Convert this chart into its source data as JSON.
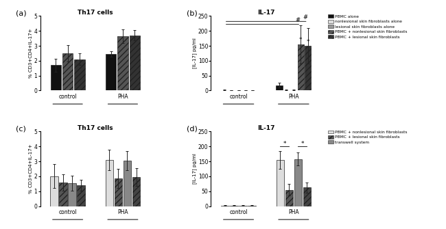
{
  "panel_a": {
    "title": "Th17 cells",
    "ylabel": "% CD3+CD4+IL-17+",
    "ylim": [
      0,
      5
    ],
    "yticks": [
      0,
      1,
      2,
      3,
      4,
      5
    ],
    "groups": [
      "control",
      "PHA"
    ],
    "bars": [
      {
        "label": "PBMC alone",
        "values": [
          1.7,
          2.45
        ],
        "errors": [
          0.45,
          0.2
        ],
        "color": "#111111",
        "hatch": null
      },
      {
        "label": "PBMC + nonlesional",
        "values": [
          2.5,
          3.65
        ],
        "errors": [
          0.55,
          0.45
        ],
        "color": "#555555",
        "hatch": "////"
      },
      {
        "label": "PBMC + lesional",
        "values": [
          2.1,
          3.7
        ],
        "errors": [
          0.4,
          0.35
        ],
        "color": "#333333",
        "hatch": "////"
      }
    ]
  },
  "panel_b": {
    "title": "IL-17",
    "ylabel": "[IL-17] pg/ml",
    "ylim": [
      0,
      250
    ],
    "yticks": [
      0,
      50,
      100,
      150,
      200,
      250
    ],
    "groups": [
      "control",
      "PHA"
    ],
    "bars": [
      {
        "label": "PBMC alone",
        "values": [
          2,
          18
        ],
        "errors": [
          1,
          8
        ],
        "color": "#111111",
        "hatch": null
      },
      {
        "label": "nonlesional skin fibroblasts alone",
        "values": [
          1,
          2
        ],
        "errors": [
          0.5,
          1
        ],
        "color": "#dddddd",
        "hatch": null
      },
      {
        "label": "lesional skin fibroblasts alone",
        "values": [
          1,
          2
        ],
        "errors": [
          0.5,
          1
        ],
        "color": "#999999",
        "hatch": null
      },
      {
        "label": "PBMC + nonlesional skin fibroblasts",
        "values": [
          1,
          155
        ],
        "errors": [
          0.5,
          65
        ],
        "color": "#555555",
        "hatch": "////"
      },
      {
        "label": "PBMC + lesional skin fibroblasts",
        "values": [
          1,
          150
        ],
        "errors": [
          0.5,
          60
        ],
        "color": "#333333",
        "hatch": "////"
      }
    ]
  },
  "panel_c": {
    "title": "Th17 cells",
    "ylabel": "% CD3+CD4+IL-17+",
    "ylim": [
      0,
      5
    ],
    "yticks": [
      0,
      1,
      2,
      3,
      4,
      5
    ],
    "groups": [
      "control",
      "PHA"
    ],
    "bars": [
      {
        "label": "PBMC + nonlesional skin fibroblasts",
        "values": [
          2.0,
          3.1
        ],
        "errors": [
          0.8,
          0.7
        ],
        "color": "#dddddd",
        "hatch": null
      },
      {
        "label": "PBMC + lesional skin fibroblasts",
        "values": [
          1.6,
          1.85
        ],
        "errors": [
          0.55,
          0.65
        ],
        "color": "#555555",
        "hatch": "////"
      },
      {
        "label": "transwell nonlesional",
        "values": [
          1.55,
          3.05
        ],
        "errors": [
          0.5,
          0.65
        ],
        "color": "#888888",
        "hatch": null
      },
      {
        "label": "transwell lesional",
        "values": [
          1.4,
          1.95
        ],
        "errors": [
          0.35,
          0.6
        ],
        "color": "#444444",
        "hatch": "////"
      }
    ]
  },
  "panel_d": {
    "title": "IL-17",
    "ylabel": "[IL-17] pg/ml",
    "ylim": [
      0,
      250
    ],
    "yticks": [
      0,
      50,
      100,
      150,
      200,
      250
    ],
    "groups": [
      "control",
      "PHA"
    ],
    "bars": [
      {
        "label": "PBMC + nonlesional skin fibroblasts",
        "values": [
          2,
          155
        ],
        "errors": [
          1,
          30
        ],
        "color": "#dddddd",
        "hatch": null
      },
      {
        "label": "PBMC + lesional skin fibroblasts",
        "values": [
          2,
          55
        ],
        "errors": [
          1,
          20
        ],
        "color": "#555555",
        "hatch": "////"
      },
      {
        "label": "transwell nonlesional",
        "values": [
          2,
          158
        ],
        "errors": [
          1,
          22
        ],
        "color": "#888888",
        "hatch": null
      },
      {
        "label": "transwell lesional",
        "values": [
          2,
          62
        ],
        "errors": [
          1,
          18
        ],
        "color": "#444444",
        "hatch": "////"
      }
    ]
  },
  "legend_b": [
    {
      "label": "PBMC alone",
      "color": "#111111",
      "hatch": null
    },
    {
      "label": "nonlesional skin fibroblasts alone",
      "color": "#dddddd",
      "hatch": null
    },
    {
      "label": "lesional skin fibroblasts alone",
      "color": "#999999",
      "hatch": null
    },
    {
      "label": "PBMC + nonlesional skin fibroblasts",
      "color": "#555555",
      "hatch": "////"
    },
    {
      "label": "PBMC + lesional skin fibroblasts",
      "color": "#333333",
      "hatch": "////"
    }
  ],
  "legend_d": [
    {
      "label": "PBMC + nonlesional skin fibroblasts",
      "color": "#dddddd",
      "hatch": null
    },
    {
      "label": "PBMC + lesional skin fibroblasts",
      "color": "#555555",
      "hatch": "////"
    },
    {
      "label": "transwell system",
      "color": "#888888",
      "hatch": null
    }
  ],
  "background_color": "#ffffff"
}
